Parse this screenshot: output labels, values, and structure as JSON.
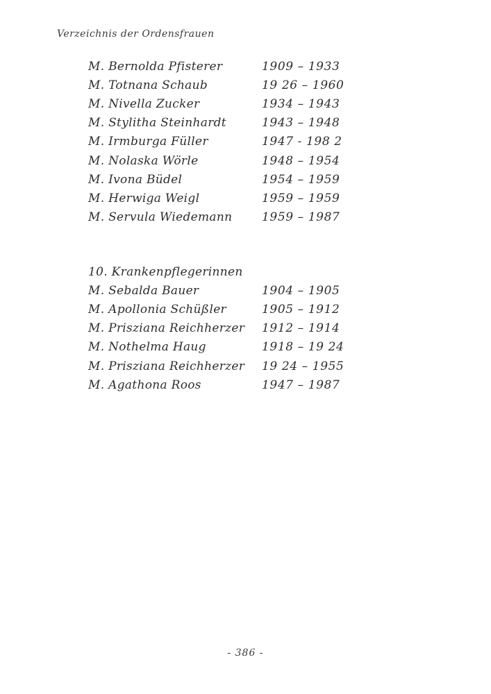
{
  "page": {
    "running_head": "Verzeichnis der Ordensfrauen",
    "footer_page_number": "- 386 -"
  },
  "list_continued": {
    "entries": [
      {
        "name": "M. Bernolda Pfisterer",
        "years": "1909 – 1933"
      },
      {
        "name": "M. Totnana Schaub",
        "years": "19 26 – 1960"
      },
      {
        "name": "M. Nivella Zucker",
        "years": "1934 – 1943"
      },
      {
        "name": "M. Stylitha Steinhardt",
        "years": "1943 – 1948"
      },
      {
        "name": "M. Irmburga Füller",
        "years": "1947 - 198 2"
      },
      {
        "name": "M. Nolaska Wörle",
        "years": "1948 – 1954"
      },
      {
        "name": "M. Ivona Büdel",
        "years": "1954 – 1959"
      },
      {
        "name": "M. Herwiga Weigl",
        "years": "1959 – 1959"
      },
      {
        "name": "M. Servula Wiedemann",
        "years": "1959 – 1987"
      }
    ]
  },
  "section_10": {
    "heading": "10. Krankenpflegerinnen",
    "entries": [
      {
        "name": "M. Sebalda Bauer",
        "years": "1904 – 1905"
      },
      {
        "name": "M. Apollonia Schüßler",
        "years": "1905 – 1912"
      },
      {
        "name": "M. Prisziana Reichherzer",
        "years": "1912 – 1914"
      },
      {
        "name": "M. Nothelma Haug",
        "years": "1918 – 19 24"
      },
      {
        "name": "M. Prisziana Reichherzer",
        "years": "19 24 – 1955"
      },
      {
        "name": "M. Agathona Roos",
        "years": "1947 – 1987"
      }
    ]
  }
}
